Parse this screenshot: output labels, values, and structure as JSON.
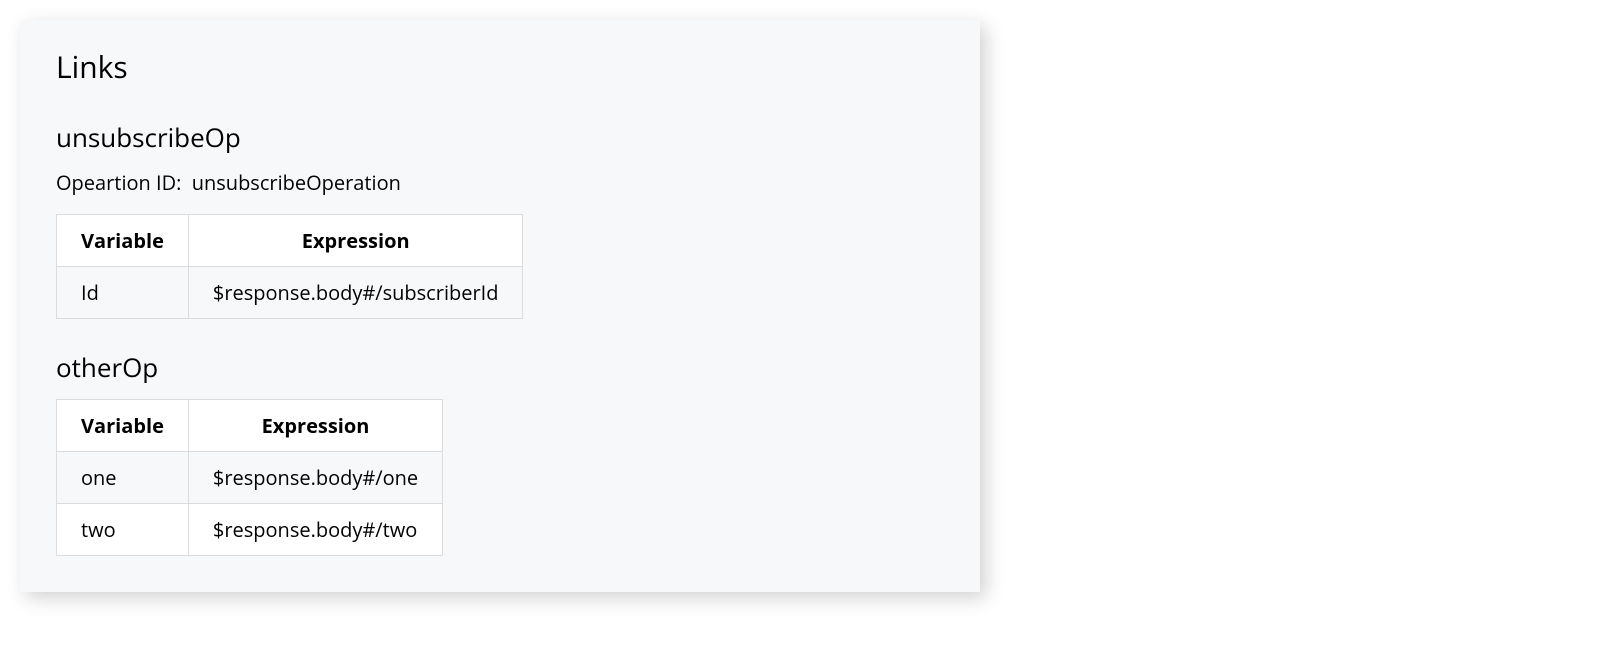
{
  "panel": {
    "title": "Links"
  },
  "table_headers": {
    "variable": "Variable",
    "expression": "Expression"
  },
  "op_id_label": "Opeartion ID:",
  "links": [
    {
      "name": "unsubscribeOp",
      "operation_id": "unsubscribeOperation",
      "rows": [
        {
          "variable": "Id",
          "expression": "$response.body#/subscriberId"
        }
      ]
    },
    {
      "name": "otherOp",
      "operation_id": null,
      "rows": [
        {
          "variable": "one",
          "expression": "$response.body#/one"
        },
        {
          "variable": "two",
          "expression": "$response.body#/two"
        }
      ]
    }
  ]
}
